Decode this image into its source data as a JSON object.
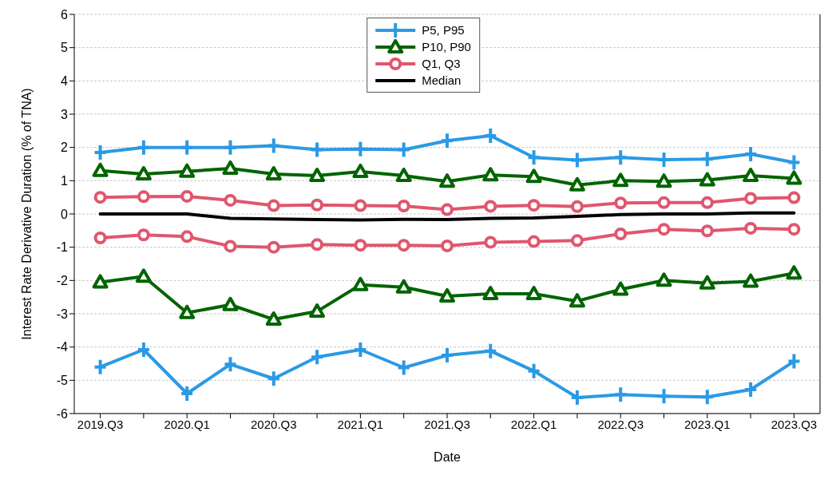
{
  "chart_data": {
    "type": "line",
    "xlabel": "Date",
    "ylabel": "Interest Rate Derivative Duration (% of TNA)",
    "categories": [
      "2019.Q3",
      null,
      "2020.Q1",
      null,
      "2020.Q3",
      null,
      "2021.Q1",
      null,
      "2021.Q3",
      null,
      "2022.Q1",
      null,
      "2022.Q3",
      null,
      "2023.Q1",
      null,
      "2023.Q3"
    ],
    "ylim": [
      -6,
      6
    ],
    "yticks": [
      -6,
      -5,
      -4,
      -3,
      -2,
      -1,
      0,
      1,
      2,
      3,
      4,
      5,
      6
    ],
    "grid": "y",
    "legend": "top",
    "series": [
      {
        "name": "P5, P95",
        "color": "#2b9ae4",
        "marker": "cross",
        "values": [
          1.85,
          2.0,
          2.0,
          2.0,
          2.05,
          1.93,
          1.95,
          1.93,
          2.2,
          2.35,
          1.7,
          1.62,
          1.7,
          1.63,
          1.65,
          1.8,
          1.55
        ]
      },
      {
        "name": "P10, P90",
        "color": "#006400",
        "marker": "triangle",
        "values": [
          1.3,
          1.2,
          1.28,
          1.37,
          1.2,
          1.15,
          1.27,
          1.15,
          0.98,
          1.17,
          1.12,
          0.87,
          1.0,
          0.98,
          1.02,
          1.15,
          1.07
        ]
      },
      {
        "name": "Q1, Q3",
        "color": "#e0566e",
        "marker": "circle",
        "values": [
          0.5,
          0.52,
          0.53,
          0.41,
          0.25,
          0.27,
          0.25,
          0.24,
          0.13,
          0.23,
          0.26,
          0.22,
          0.33,
          0.34,
          0.34,
          0.47,
          0.49
        ]
      },
      {
        "name": "Median",
        "color": "#000000",
        "marker": "none",
        "values": [
          0,
          0,
          0,
          -0.13,
          -0.15,
          -0.17,
          -0.18,
          -0.16,
          -0.17,
          -0.13,
          -0.12,
          -0.07,
          -0.02,
          0,
          0,
          0.03,
          0.03
        ]
      },
      {
        "color": "#e0566e",
        "marker": "circle",
        "values": [
          -0.72,
          -0.63,
          -0.68,
          -0.97,
          -1.0,
          -0.92,
          -0.94,
          -0.94,
          -0.96,
          -0.85,
          -0.83,
          -0.8,
          -0.6,
          -0.46,
          -0.51,
          -0.43,
          -0.46
        ]
      },
      {
        "color": "#006400",
        "marker": "triangle",
        "values": [
          -2.05,
          -1.88,
          -2.97,
          -2.73,
          -3.17,
          -2.93,
          -2.13,
          -2.2,
          -2.47,
          -2.4,
          -2.4,
          -2.62,
          -2.27,
          -2.0,
          -2.08,
          -2.03,
          -1.78
        ]
      },
      {
        "color": "#2b9ae4",
        "marker": "cross",
        "values": [
          -4.6,
          -4.08,
          -5.4,
          -4.52,
          -4.95,
          -4.3,
          -4.08,
          -4.62,
          -4.25,
          -4.12,
          -4.72,
          -5.52,
          -5.43,
          -5.48,
          -5.5,
          -5.28,
          -4.43
        ]
      }
    ]
  }
}
